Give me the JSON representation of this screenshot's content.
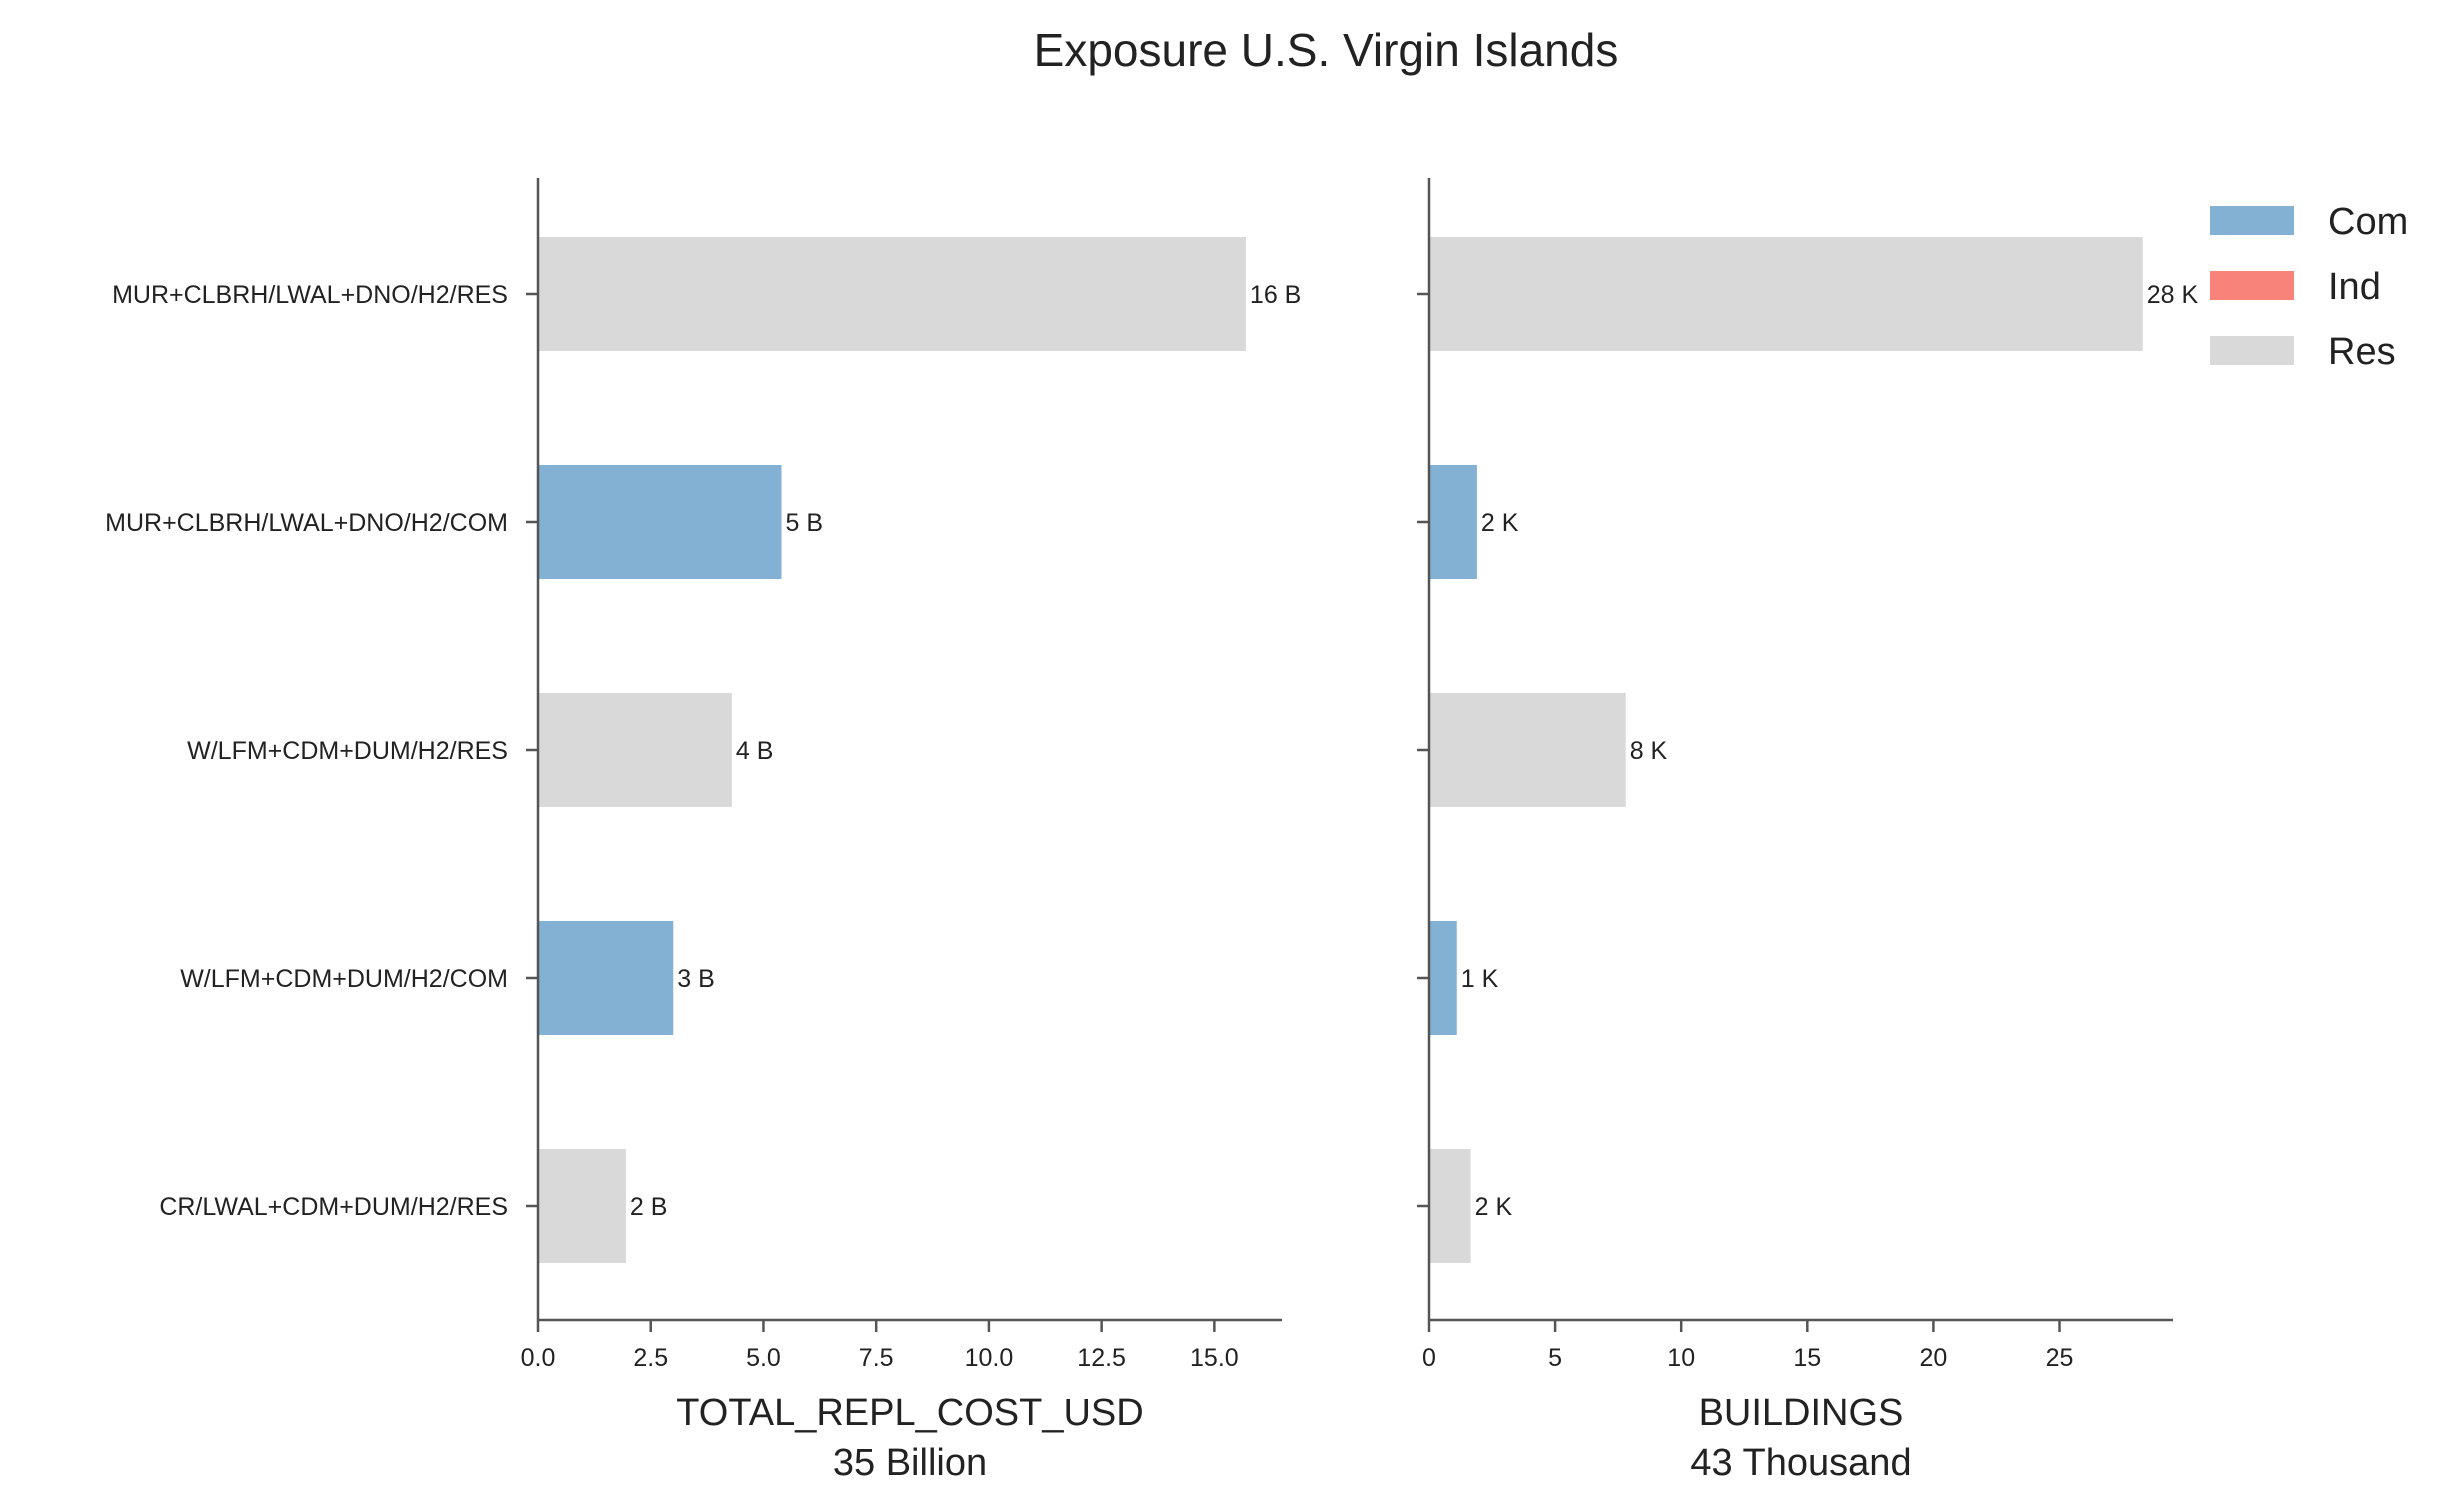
{
  "chart_data": {
    "title": "Exposure U.S. Virgin Islands",
    "type": "bar",
    "orientation": "horizontal",
    "colors": {
      "Com": "#82b1d3",
      "Ind": "#f8837a",
      "Res": "#d9d9d9"
    },
    "legend": {
      "placement": "top-right",
      "entries": [
        "Com",
        "Ind",
        "Res"
      ]
    },
    "categories": [
      "MUR+CLBRH/LWAL+DNO/H2/RES",
      "MUR+CLBRH/LWAL+DNO/H2/COM",
      "W/LFM+CDM+DUM/H2/RES",
      "W/LFM+CDM+DUM/H2/COM",
      "CR/LWAL+CDM+DUM/H2/RES"
    ],
    "occupancy": [
      "Res",
      "Com",
      "Res",
      "Com",
      "Res"
    ],
    "panels": [
      {
        "xlabel": "TOTAL_REPL_COST_USD",
        "sublabel": "35 Billion",
        "xlim": [
          0,
          16.5
        ],
        "xticks": [
          0,
          2.5,
          5,
          7.5,
          10,
          12.5,
          15
        ],
        "xtick_labels": [
          "0.0",
          "2.5",
          "5.0",
          "7.5",
          "10.0",
          "12.5",
          "15.0"
        ],
        "values": [
          15.7,
          5.4,
          4.3,
          3.0,
          1.95
        ],
        "value_labels": [
          "16 B",
          "5 B",
          "4 B",
          "3 B",
          "2 B"
        ]
      },
      {
        "xlabel": "BUILDINGS",
        "sublabel": "43 Thousand",
        "xlim": [
          0,
          29.5
        ],
        "xticks": [
          0,
          5,
          10,
          15,
          20,
          25
        ],
        "xtick_labels": [
          "0",
          "5",
          "10",
          "15",
          "20",
          "25"
        ],
        "values": [
          28.3,
          1.9,
          7.8,
          1.1,
          1.65
        ],
        "value_labels": [
          "28 K",
          "2 K",
          "8 K",
          "1 K",
          "2 K"
        ]
      }
    ]
  }
}
